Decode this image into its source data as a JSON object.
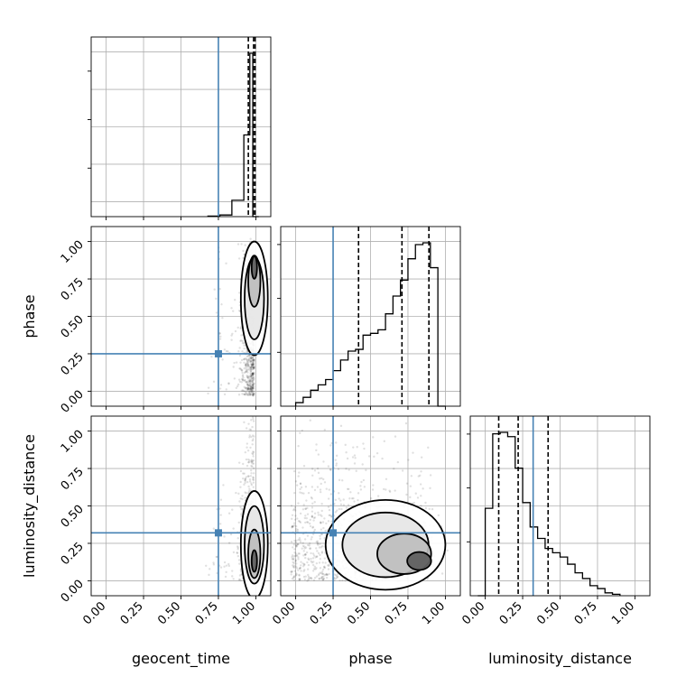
{
  "chart_data": {
    "type": "corner",
    "parameters": [
      "geocent_time",
      "phase",
      "luminosity_distance"
    ],
    "xlabels": [
      "geocent_time",
      "phase",
      "luminosity_distance"
    ],
    "ylabels": [
      "",
      "phase",
      "luminosity_distance"
    ],
    "tick_values": [
      0,
      0.25,
      0.5,
      0.75,
      1.0
    ],
    "tick_labels": [
      "0.00",
      "0.25",
      "0.50",
      "0.75",
      "1.00"
    ],
    "axis_range": [
      -0.1,
      1.1
    ],
    "grid": true,
    "truths": [
      0.75,
      0.25,
      0.32
    ],
    "truth_color": "#4682b4",
    "quantiles": [
      [
        0.95,
        0.985,
        0.995
      ],
      [
        0.42,
        0.71,
        0.89
      ],
      [
        0.09,
        0.22,
        0.42
      ]
    ],
    "histograms": [
      {
        "parameter": "geocent_time",
        "bin_edges": [
          0.68,
          0.76,
          0.84,
          0.92,
          0.96,
          0.98,
          1.02
        ],
        "counts": [
          1,
          3,
          30,
          150,
          300,
          0
        ]
      },
      {
        "parameter": "phase",
        "bin_edges": [
          0.0,
          0.05,
          0.1,
          0.15,
          0.2,
          0.25,
          0.3,
          0.35,
          0.4,
          0.45,
          0.5,
          0.55,
          0.6,
          0.65,
          0.7,
          0.75,
          0.8,
          0.85,
          0.9,
          0.95,
          1.0
        ],
        "counts": [
          2,
          5,
          9,
          12,
          15,
          20,
          26,
          31,
          32,
          40,
          41,
          43,
          52,
          62,
          71,
          83,
          91,
          92,
          78,
          0
        ]
      },
      {
        "parameter": "luminosity_distance",
        "bin_edges": [
          -0.05,
          0.0,
          0.05,
          0.1,
          0.15,
          0.2,
          0.25,
          0.3,
          0.35,
          0.4,
          0.45,
          0.5,
          0.55,
          0.6,
          0.65,
          0.7,
          0.75,
          0.8,
          0.85,
          0.9
        ],
        "counts": [
          0,
          61,
          113,
          114,
          111,
          89,
          65,
          48,
          40,
          33,
          30,
          27,
          22,
          16,
          12,
          7,
          5,
          2,
          1
        ]
      }
    ],
    "density_mode": {
      "geocent_time_vs_phase": [
        0.99,
        0.85
      ],
      "geocent_time_vs_luminosity_distance": [
        0.99,
        0.12
      ],
      "phase_vs_luminosity_distance": [
        0.85,
        0.12
      ]
    }
  }
}
